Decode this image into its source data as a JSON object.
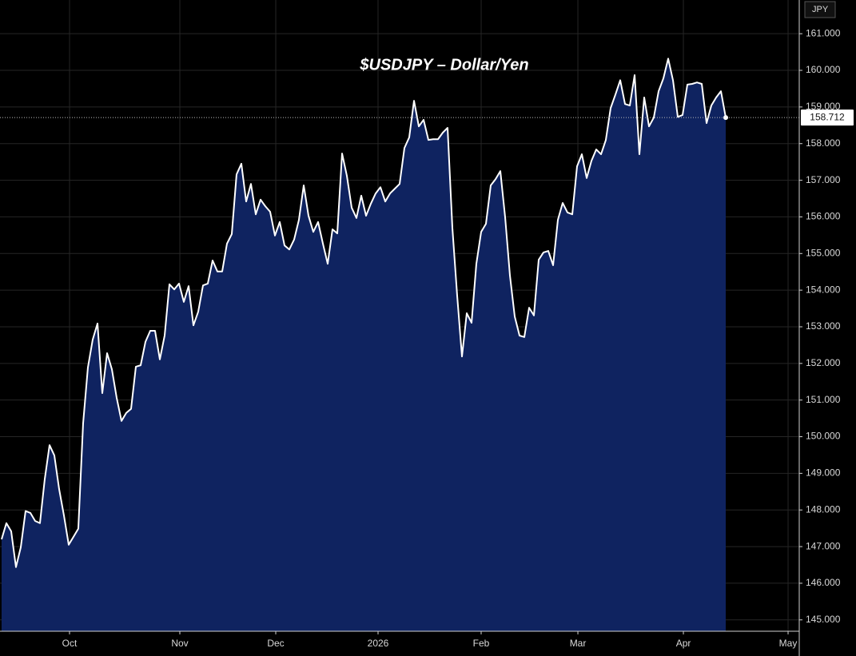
{
  "chart_data": {
    "type": "area",
    "title": "$USDJPY – Dollar/Yen",
    "currency": "JPY",
    "x": [
      0,
      1,
      2,
      3,
      4,
      5,
      6,
      7,
      8,
      9,
      10,
      11,
      12,
      13,
      14,
      15,
      16,
      17,
      18,
      19,
      20,
      21,
      22,
      23,
      24,
      25,
      26,
      27,
      28,
      29,
      30,
      31,
      32,
      33,
      34,
      35,
      36,
      37,
      38,
      39,
      40,
      41,
      42,
      43,
      44,
      45,
      46,
      47,
      48,
      49,
      50,
      51,
      52,
      53,
      54,
      55,
      56,
      57,
      58,
      59,
      60,
      61,
      62,
      63,
      64,
      65,
      66,
      67,
      68,
      69,
      70,
      71,
      72,
      73,
      74,
      75,
      76,
      77,
      78,
      79,
      80,
      81,
      82,
      83,
      84,
      85,
      86,
      87,
      88,
      89,
      90,
      91,
      92,
      93,
      94,
      95,
      96,
      97,
      98,
      99,
      100,
      101,
      102,
      103,
      104,
      105,
      106,
      107,
      108,
      109,
      110,
      111,
      112,
      113,
      114,
      115,
      116,
      117,
      118,
      119,
      120,
      121,
      122,
      123,
      124,
      125,
      126,
      127,
      128,
      129,
      130,
      131,
      132,
      133,
      134,
      135,
      136,
      137,
      138,
      139,
      140,
      141,
      142,
      143,
      144,
      145,
      146,
      147,
      148,
      149,
      150,
      151
    ],
    "series": [
      {
        "name": "$USDJPY",
        "color": "#ffffff",
        "fill": "#0f2360",
        "values": [
          147.2,
          147.64,
          147.42,
          146.44,
          146.98,
          147.97,
          147.92,
          147.7,
          147.64,
          148.84,
          149.77,
          149.49,
          148.57,
          147.85,
          147.05,
          147.27,
          147.49,
          150.36,
          151.89,
          152.65,
          153.09,
          151.19,
          152.28,
          151.84,
          151.06,
          150.43,
          150.65,
          150.76,
          151.91,
          151.95,
          152.59,
          152.89,
          152.89,
          152.11,
          152.76,
          154.16,
          154.02,
          154.18,
          153.68,
          154.11,
          153.04,
          153.41,
          154.13,
          154.18,
          154.81,
          154.51,
          154.51,
          155.27,
          155.53,
          157.16,
          157.45,
          156.42,
          156.9,
          156.07,
          156.47,
          156.29,
          156.14,
          155.49,
          155.86,
          155.22,
          155.11,
          155.38,
          155.92,
          156.86,
          156.03,
          155.59,
          155.86,
          155.27,
          154.72,
          155.66,
          155.55,
          157.73,
          157.12,
          156.25,
          155.97,
          156.58,
          156.03,
          156.36,
          156.64,
          156.81,
          156.42,
          156.64,
          156.77,
          156.9,
          157.88,
          158.17,
          159.17,
          158.47,
          158.65,
          158.1,
          158.12,
          158.12,
          158.3,
          158.43,
          155.7,
          153.85,
          152.19,
          153.37,
          153.11,
          154.72,
          155.59,
          155.81,
          156.86,
          157.03,
          157.25,
          155.99,
          154.4,
          153.28,
          152.76,
          152.72,
          153.52,
          153.31,
          154.83,
          155.03,
          155.07,
          154.68,
          155.92,
          156.38,
          156.12,
          156.07,
          157.38,
          157.71,
          157.06,
          157.53,
          157.84,
          157.71,
          158.1,
          158.97,
          159.34,
          159.73,
          159.08,
          159.04,
          159.87,
          157.71,
          159.26,
          158.47,
          158.71,
          159.43,
          159.78,
          160.32,
          159.73,
          158.73,
          158.78,
          159.61,
          159.63,
          159.67,
          159.63,
          158.56,
          159.04,
          159.26,
          159.43,
          158.712
        ]
      }
    ],
    "xlim": [
      -0.33,
      166.33
    ],
    "xticks": [
      {
        "value": 14.17,
        "label": "Oct"
      },
      {
        "value": 37.17,
        "label": "Nov"
      },
      {
        "value": 57.17,
        "label": "Dec"
      },
      {
        "value": 78.5,
        "label": "2026"
      },
      {
        "value": 100,
        "label": "Feb"
      },
      {
        "value": 120.17,
        "label": "Mar"
      },
      {
        "value": 142.17,
        "label": "Apr"
      },
      {
        "value": 164,
        "label": "May"
      }
    ],
    "ylim": [
      144.69,
      161.92
    ],
    "yticks": [
      {
        "value": 145,
        "label": "145.000"
      },
      {
        "value": 146,
        "label": "146.000"
      },
      {
        "value": 147,
        "label": "147.000"
      },
      {
        "value": 148,
        "label": "148.000"
      },
      {
        "value": 149,
        "label": "149.000"
      },
      {
        "value": 150,
        "label": "150.000"
      },
      {
        "value": 151,
        "label": "151.000"
      },
      {
        "value": 152,
        "label": "152.000"
      },
      {
        "value": 153,
        "label": "153.000"
      },
      {
        "value": 154,
        "label": "154.000"
      },
      {
        "value": 155,
        "label": "155.000"
      },
      {
        "value": 156,
        "label": "156.000"
      },
      {
        "value": 157,
        "label": "157.000"
      },
      {
        "value": 158,
        "label": "158.000"
      },
      {
        "value": 159,
        "label": "159.000"
      },
      {
        "value": 160,
        "label": "160.000"
      },
      {
        "value": 161,
        "label": "161.000"
      }
    ],
    "grid": true
  }
}
